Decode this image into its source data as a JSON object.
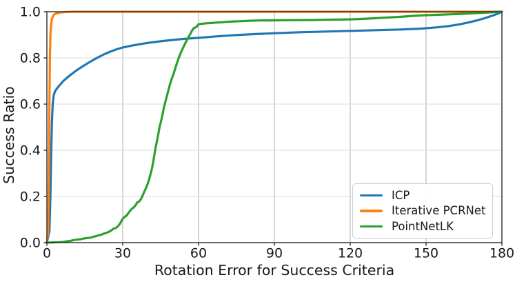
{
  "chart_data": {
    "type": "line",
    "title": "",
    "xlabel": "Rotation Error for Success Criteria",
    "ylabel": "Success Ratio",
    "xlim": [
      0,
      180
    ],
    "ylim": [
      0.0,
      1.0
    ],
    "grid": true,
    "legend_position": "lower right",
    "xticks": {
      "values": [
        0,
        30,
        60,
        90,
        120,
        150,
        180
      ],
      "labels": [
        "0",
        "30",
        "60",
        "90",
        "120",
        "150",
        "180"
      ]
    },
    "yticks": {
      "values": [
        0.0,
        0.2,
        0.4,
        0.6,
        0.8,
        1.0
      ],
      "labels": [
        "0.0",
        "0.2",
        "0.4",
        "0.6",
        "0.8",
        "1.0"
      ]
    },
    "style": {
      "grid_color_vertical": "#b5b5b5",
      "grid_color_horizontal": "#e0e0e0",
      "spine_color": "#2e2e2e",
      "tick_color": "#2e2e2e",
      "text_color": "#191919",
      "line_width": 3.2
    },
    "series": [
      {
        "name": "ICP",
        "color": "#1f77b4",
        "points": [
          [
            0,
            0
          ],
          [
            1.0,
            0.05
          ],
          [
            1.4,
            0.2
          ],
          [
            1.7,
            0.38
          ],
          [
            2.0,
            0.52
          ],
          [
            2.3,
            0.6
          ],
          [
            2.7,
            0.638
          ],
          [
            3.2,
            0.655
          ],
          [
            4,
            0.668
          ],
          [
            5,
            0.681
          ],
          [
            6.5,
            0.7
          ],
          [
            8,
            0.714
          ],
          [
            10,
            0.732
          ],
          [
            12,
            0.748
          ],
          [
            14,
            0.762
          ],
          [
            16,
            0.776
          ],
          [
            18,
            0.789
          ],
          [
            20,
            0.801
          ],
          [
            22.5,
            0.815
          ],
          [
            25,
            0.827
          ],
          [
            27.5,
            0.837
          ],
          [
            30,
            0.845
          ],
          [
            33,
            0.852
          ],
          [
            36,
            0.858
          ],
          [
            40,
            0.865
          ],
          [
            45,
            0.872
          ],
          [
            50,
            0.878
          ],
          [
            55,
            0.883
          ],
          [
            60,
            0.887
          ],
          [
            67,
            0.893
          ],
          [
            75,
            0.899
          ],
          [
            82,
            0.903
          ],
          [
            90,
            0.907
          ],
          [
            100,
            0.911
          ],
          [
            110,
            0.914
          ],
          [
            120,
            0.917
          ],
          [
            130,
            0.92
          ],
          [
            140,
            0.923
          ],
          [
            148,
            0.927
          ],
          [
            154,
            0.932
          ],
          [
            159,
            0.938
          ],
          [
            163,
            0.945
          ],
          [
            167,
            0.954
          ],
          [
            170,
            0.962
          ],
          [
            173,
            0.971
          ],
          [
            176,
            0.982
          ],
          [
            178,
            0.99
          ],
          [
            180,
            1.0
          ]
        ]
      },
      {
        "name": "Iterative PCRNet",
        "color": "#ff7f0e",
        "points": [
          [
            0,
            0
          ],
          [
            0.5,
            0.05
          ],
          [
            0.8,
            0.3
          ],
          [
            1.0,
            0.6
          ],
          [
            1.2,
            0.8
          ],
          [
            1.4,
            0.9
          ],
          [
            1.7,
            0.945
          ],
          [
            2.0,
            0.968
          ],
          [
            2.5,
            0.982
          ],
          [
            3,
            0.989
          ],
          [
            4,
            0.994
          ],
          [
            5,
            0.996
          ],
          [
            6.5,
            0.998
          ],
          [
            8,
            0.999
          ],
          [
            10,
            1.0
          ],
          [
            180,
            1.0
          ]
        ]
      },
      {
        "name": "PointNetLK",
        "color": "#2ca02c",
        "points": [
          [
            0,
            0
          ],
          [
            2,
            0.001
          ],
          [
            5,
            0.002
          ],
          [
            7,
            0.004
          ],
          [
            8,
            0.006
          ],
          [
            9.5,
            0.008
          ],
          [
            10.5,
            0.011
          ],
          [
            12,
            0.013
          ],
          [
            13.5,
            0.015
          ],
          [
            14.5,
            0.018
          ],
          [
            16,
            0.02
          ],
          [
            17.5,
            0.022
          ],
          [
            18.5,
            0.026
          ],
          [
            19.5,
            0.028
          ],
          [
            20.5,
            0.032
          ],
          [
            21.5,
            0.034
          ],
          [
            22.5,
            0.039
          ],
          [
            23.5,
            0.042
          ],
          [
            24.5,
            0.047
          ],
          [
            25.5,
            0.053
          ],
          [
            26.3,
            0.06
          ],
          [
            27.2,
            0.063
          ],
          [
            28,
            0.07
          ],
          [
            28.8,
            0.08
          ],
          [
            29.4,
            0.092
          ],
          [
            30,
            0.103
          ],
          [
            30.8,
            0.112
          ],
          [
            31.6,
            0.118
          ],
          [
            32.4,
            0.131
          ],
          [
            33,
            0.139
          ],
          [
            33.8,
            0.148
          ],
          [
            34.5,
            0.154
          ],
          [
            35.2,
            0.164
          ],
          [
            35.8,
            0.175
          ],
          [
            36.6,
            0.179
          ],
          [
            37.4,
            0.192
          ],
          [
            38,
            0.207
          ],
          [
            38.6,
            0.222
          ],
          [
            39.2,
            0.236
          ],
          [
            39.8,
            0.252
          ],
          [
            40.4,
            0.272
          ],
          [
            41,
            0.296
          ],
          [
            41.6,
            0.322
          ],
          [
            42.1,
            0.352
          ],
          [
            42.6,
            0.386
          ],
          [
            43.1,
            0.416
          ],
          [
            43.6,
            0.443
          ],
          [
            44.1,
            0.471
          ],
          [
            44.6,
            0.501
          ],
          [
            45.2,
            0.527
          ],
          [
            45.8,
            0.556
          ],
          [
            46.3,
            0.586
          ],
          [
            46.9,
            0.611
          ],
          [
            47.5,
            0.637
          ],
          [
            48.1,
            0.661
          ],
          [
            48.7,
            0.686
          ],
          [
            49.3,
            0.707
          ],
          [
            50,
            0.727
          ],
          [
            50.7,
            0.752
          ],
          [
            51.4,
            0.776
          ],
          [
            52.2,
            0.801
          ],
          [
            53,
            0.823
          ],
          [
            54,
            0.847
          ],
          [
            55,
            0.869
          ],
          [
            55.8,
            0.886
          ],
          [
            56.6,
            0.901
          ],
          [
            57.4,
            0.918
          ],
          [
            58,
            0.928
          ],
          [
            58.7,
            0.932
          ],
          [
            59.4,
            0.936
          ],
          [
            59.9,
            0.945
          ],
          [
            60.6,
            0.947
          ],
          [
            61.6,
            0.948
          ],
          [
            63,
            0.95
          ],
          [
            65,
            0.951
          ],
          [
            67,
            0.953
          ],
          [
            69,
            0.954
          ],
          [
            71,
            0.956
          ],
          [
            74,
            0.958
          ],
          [
            77,
            0.959
          ],
          [
            80,
            0.961
          ],
          [
            84,
            0.962
          ],
          [
            88,
            0.9625
          ],
          [
            93,
            0.963
          ],
          [
            98,
            0.9635
          ],
          [
            104,
            0.964
          ],
          [
            110,
            0.965
          ],
          [
            115,
            0.966
          ],
          [
            120,
            0.967
          ],
          [
            125,
            0.969
          ],
          [
            130,
            0.972
          ],
          [
            135,
            0.975
          ],
          [
            140,
            0.978
          ],
          [
            145,
            0.982
          ],
          [
            150,
            0.985
          ],
          [
            155,
            0.987
          ],
          [
            160,
            0.989
          ],
          [
            165,
            0.991
          ],
          [
            170,
            0.994
          ],
          [
            175,
            0.997
          ],
          [
            180,
            1.0
          ]
        ]
      }
    ]
  }
}
